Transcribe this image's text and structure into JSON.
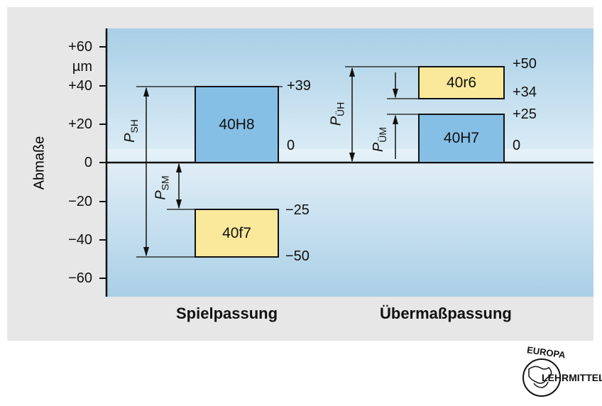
{
  "axis": {
    "title": "Abmaße",
    "unit": "µm",
    "ticks": [
      "+60",
      "+40",
      "+20",
      "0",
      "−20",
      "−40",
      "−60"
    ]
  },
  "sections": {
    "left": "Spielpassung",
    "right": "Übermaßpassung"
  },
  "tolerance_zones": [
    {
      "id": "40H8",
      "label": "40H8",
      "upper": "+39",
      "lower": "0",
      "color": "#86bfe6"
    },
    {
      "id": "40f7",
      "label": "40f7",
      "upper": "−25",
      "lower": "−50",
      "color": "#fbe99b"
    },
    {
      "id": "40r6",
      "label": "40r6",
      "upper": "+50",
      "lower": "+34",
      "color": "#fbe99b"
    },
    {
      "id": "40H7",
      "label": "40H7",
      "upper": "+25",
      "lower": "0",
      "color": "#86bfe6"
    }
  ],
  "dimensions": {
    "psh": {
      "main": "P",
      "sub": "SH"
    },
    "psm": {
      "main": "P",
      "sub": "SM"
    },
    "puh": {
      "main": "P",
      "sub": "ÜH"
    },
    "pum": {
      "main": "P",
      "sub": "ÜM"
    }
  },
  "logo": {
    "text_top": "EUROPA",
    "text_side": "LEHRMITTEL"
  }
}
